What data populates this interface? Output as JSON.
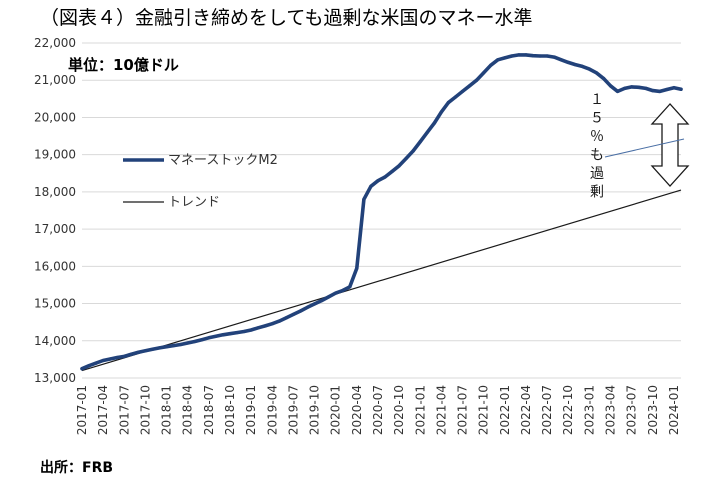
{
  "chart_data": {
    "type": "line",
    "title": "（図表４）金融引き締めをしても過剰な米国のマネー水準",
    "unit_label": "単位：10億ドル",
    "source": "出所：FRB",
    "annotation": "１５％も過剰",
    "xlabel": "",
    "ylabel": "",
    "ylim": [
      13000,
      22000
    ],
    "yticks": [
      13000,
      14000,
      15000,
      16000,
      17000,
      18000,
      19000,
      20000,
      21000,
      22000
    ],
    "ytick_labels": [
      "13,000",
      "14,000",
      "15,000",
      "16,000",
      "17,000",
      "18,000",
      "19,000",
      "20,000",
      "21,000",
      "22,000"
    ],
    "x_tick_labels": [
      "2017-01",
      "2017-04",
      "2017-07",
      "2017-10",
      "2018-01",
      "2018-04",
      "2018-07",
      "2018-10",
      "2019-01",
      "2019-04",
      "2019-07",
      "2019-10",
      "2020-01",
      "2020-04",
      "2020-07",
      "2020-10",
      "2021-01",
      "2021-04",
      "2021-07",
      "2021-10",
      "2022-01",
      "2022-04",
      "2022-07",
      "2022-10",
      "2023-01",
      "2023-04",
      "2023-07",
      "2023-10",
      "2024-01"
    ],
    "grid": "horizontal",
    "legend_position": "center-left",
    "series": [
      {
        "name": "マネーストックM2",
        "color": "#22427a",
        "values": [
          13250,
          13330,
          13400,
          13470,
          13510,
          13550,
          13580,
          13640,
          13690,
          13730,
          13770,
          13810,
          13840,
          13870,
          13900,
          13940,
          13980,
          14030,
          14080,
          14120,
          14160,
          14190,
          14220,
          14250,
          14290,
          14350,
          14400,
          14460,
          14530,
          14620,
          14710,
          14800,
          14900,
          14990,
          15080,
          15180,
          15280,
          15350,
          15450,
          15950,
          17800,
          18150,
          18300,
          18400,
          18550,
          18700,
          18900,
          19100,
          19350,
          19600,
          19850,
          20150,
          20400,
          20550,
          20700,
          20850,
          21000,
          21200,
          21400,
          21550,
          21600,
          21650,
          21680,
          21680,
          21660,
          21650,
          21650,
          21620,
          21550,
          21480,
          21420,
          21370,
          21300,
          21200,
          21050,
          20850,
          20700,
          20780,
          20820,
          20810,
          20780,
          20720,
          20700,
          20750,
          20800,
          20760
        ]
      },
      {
        "name": "トレンド",
        "color": "#1a1a1a",
        "start": 13200,
        "end": 18050
      }
    ]
  }
}
